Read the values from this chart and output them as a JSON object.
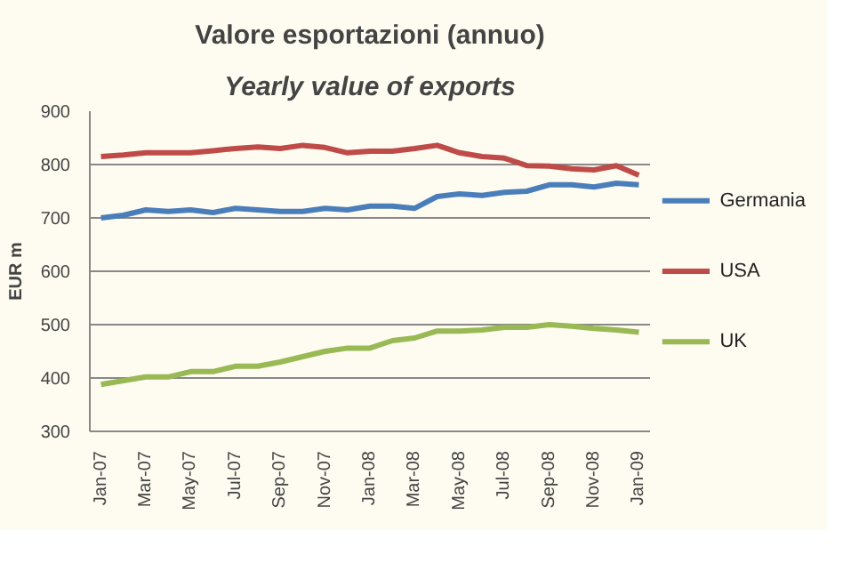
{
  "chart_data": {
    "type": "line",
    "title": "Valore esportazioni (annuo)",
    "subtitle": "Yearly value of exports",
    "ylabel": "EUR m",
    "categories": [
      "Jan-07",
      null,
      "Mar-07",
      null,
      "May-07",
      null,
      "Jul-07",
      null,
      "Sep-07",
      null,
      "Nov-07",
      null,
      "Jan-08",
      null,
      "Mar-08",
      null,
      "May-08",
      null,
      "Jul-08",
      null,
      "Sep-08",
      null,
      "Nov-08",
      null,
      "Jan-09"
    ],
    "series": [
      {
        "name": "Germania",
        "color": "#4a7ebb",
        "values": [
          700,
          705,
          715,
          712,
          715,
          710,
          718,
          715,
          712,
          712,
          718,
          715,
          722,
          722,
          718,
          740,
          745,
          742,
          748,
          750,
          762,
          762,
          758,
          765,
          762
        ]
      },
      {
        "name": "USA",
        "color": "#be4b48",
        "values": [
          815,
          818,
          822,
          822,
          822,
          826,
          830,
          833,
          830,
          836,
          832,
          822,
          825,
          825,
          830,
          836,
          822,
          815,
          812,
          798,
          797,
          792,
          790,
          798,
          780
        ]
      },
      {
        "name": "UK",
        "color": "#98b954",
        "values": [
          388,
          395,
          402,
          402,
          412,
          412,
          422,
          422,
          430,
          440,
          450,
          456,
          456,
          470,
          475,
          488,
          488,
          490,
          495,
          495,
          500,
          497,
          493,
          490,
          486
        ]
      }
    ],
    "ylim": [
      300,
      900
    ],
    "yticks": [
      300,
      400,
      500,
      600,
      700,
      800,
      900
    ],
    "grid": "y",
    "legend": "right",
    "marker": "none",
    "line_style": "solid"
  }
}
